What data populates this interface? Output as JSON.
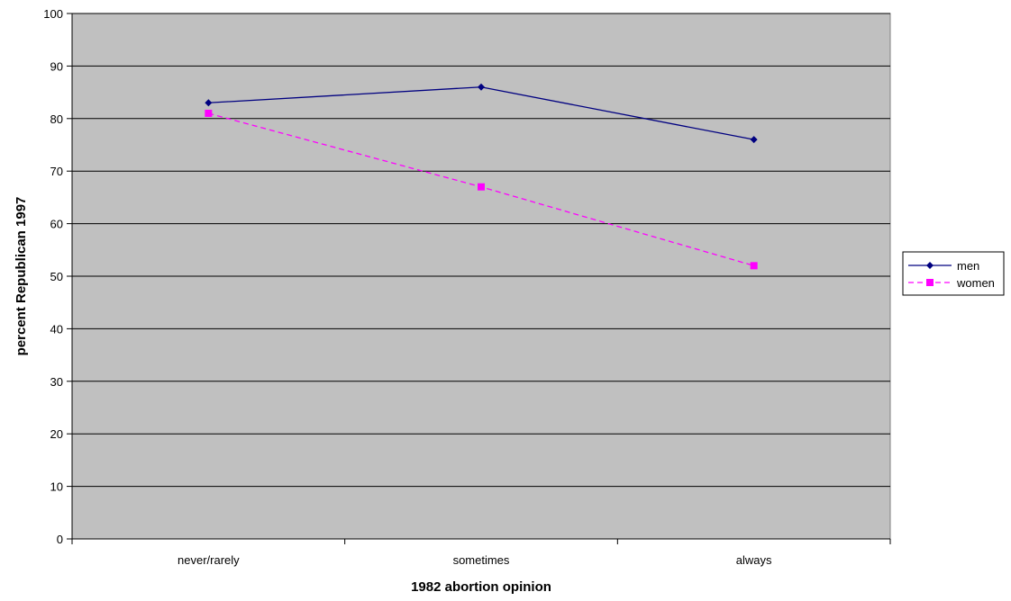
{
  "chart_data": {
    "type": "line",
    "title": "",
    "xlabel": "1982 abortion opinion",
    "ylabel": "percent Republican 1997",
    "categories": [
      "never/rarely",
      "sometimes",
      "always"
    ],
    "ylim": [
      0,
      100
    ],
    "yticks": [
      0,
      10,
      20,
      30,
      40,
      50,
      60,
      70,
      80,
      90,
      100
    ],
    "grid": true,
    "legend_position": "right",
    "series": [
      {
        "name": "men",
        "values": [
          83,
          86,
          76
        ],
        "color": "#000080",
        "marker": "diamond",
        "line_style": "solid"
      },
      {
        "name": "women",
        "values": [
          81,
          67,
          52
        ],
        "color": "#FF00FF",
        "marker": "square",
        "line_style": "dashed"
      }
    ]
  },
  "style": {
    "plot_background": "#C0C0C0",
    "gridline_color": "#000000"
  }
}
